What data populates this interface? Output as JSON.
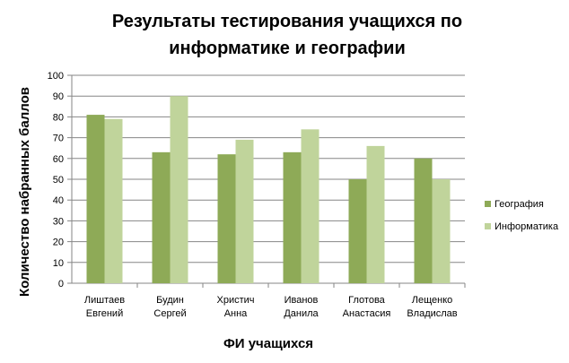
{
  "chart_data": {
    "type": "bar",
    "title_lines": [
      "Результаты тестирования учащихся по",
      "информатике и географии"
    ],
    "xlabel": "ФИ учащихся",
    "ylabel": "Количество набранных баллов",
    "categories": [
      [
        "Лиштаев",
        "Евгений"
      ],
      [
        "Будин",
        "Сергей"
      ],
      [
        "Христич",
        "Анна"
      ],
      [
        "Иванов",
        "Данила"
      ],
      [
        "Глотова",
        "Анастасия"
      ],
      [
        "Лещенко",
        "Владислав"
      ]
    ],
    "series": [
      {
        "name": "География",
        "color": "#8eaa57",
        "values": [
          81,
          63,
          62,
          63,
          50,
          60
        ]
      },
      {
        "name": "Информатика",
        "color": "#c0d49b",
        "values": [
          79,
          90,
          69,
          74,
          66,
          50
        ]
      }
    ],
    "ylim": [
      0,
      100
    ],
    "yticks": [
      0,
      10,
      20,
      30,
      40,
      50,
      60,
      70,
      80,
      90,
      100
    ],
    "grid": true,
    "legend": "right"
  }
}
